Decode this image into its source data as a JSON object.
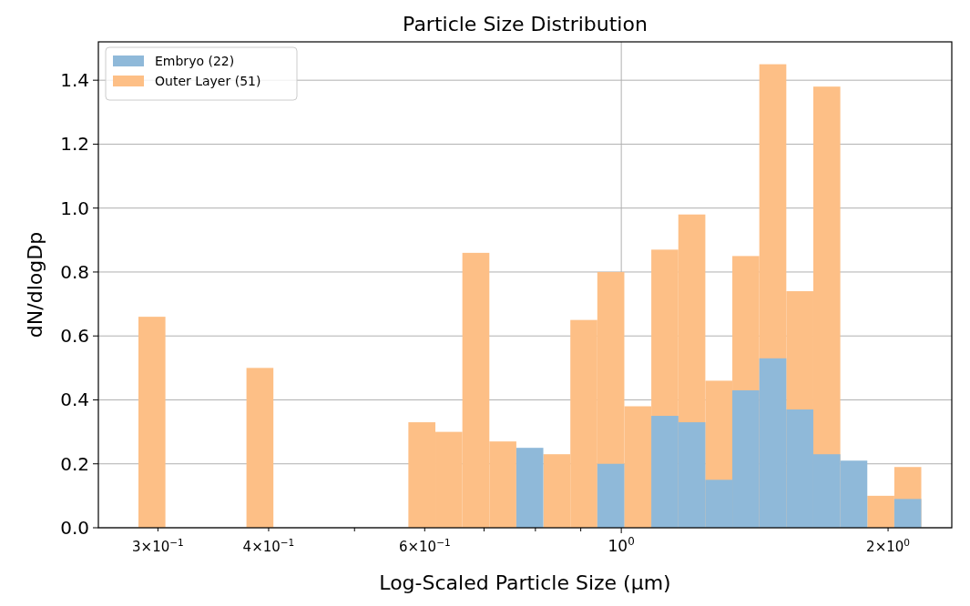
{
  "chart_data": {
    "type": "histogram",
    "title": "Particle Size Distribution",
    "xlabel": "Log-Scaled Particle Size (μm)",
    "ylabel": "dN/dlogDp",
    "bins": [
      0.2852,
      0.3059,
      0.3281,
      0.352,
      0.3776,
      0.405,
      0.4344,
      0.466,
      0.4998,
      0.5361,
      0.5751,
      0.6169,
      0.6617,
      0.7098,
      0.7613,
      0.8166,
      0.876,
      0.9396,
      1.0079,
      1.0811,
      1.1597,
      1.244,
      1.3344,
      1.4313,
      1.5353,
      1.6469,
      1.7665,
      1.8949,
      2.0326,
      2.1802
    ],
    "series": [
      {
        "name": "Embryo (22)",
        "color": "#8fb9d9",
        "values": [
          0,
          0,
          0,
          0,
          0,
          0,
          0,
          0,
          0,
          0,
          0,
          0,
          0,
          0,
          0.25,
          0,
          0,
          0.2,
          0,
          0.35,
          0.33,
          0.15,
          0.43,
          0.53,
          0.37,
          0.23,
          0.21,
          0,
          0.09
        ]
      },
      {
        "name": "Outer Layer (51)",
        "color": "#fdbf86",
        "values": [
          0.66,
          0,
          0,
          0,
          0.5,
          0,
          0,
          0,
          0,
          0,
          0.33,
          0.3,
          0.86,
          0.27,
          null,
          0.23,
          0.65,
          0.8,
          0.38,
          0.87,
          0.98,
          0.46,
          0.85,
          1.45,
          0.74,
          1.38,
          null,
          0.1,
          0.19
        ]
      }
    ],
    "log": "x",
    "xlim": [
      0.257,
      2.36
    ],
    "ylim": [
      0,
      1.52
    ],
    "xticks": [
      {
        "value": 0.3,
        "label": "3×10$^{−1}$"
      },
      {
        "value": 0.4,
        "label": "4×10$^{−1}$"
      },
      {
        "value": 0.5,
        "label": null
      },
      {
        "value": 0.6,
        "label": "6×10$^{−1}$"
      },
      {
        "value": 0.7,
        "label": null
      },
      {
        "value": 0.8,
        "label": null
      },
      {
        "value": 0.9,
        "label": null
      },
      {
        "value": 1,
        "label": "10$^{0}$"
      },
      {
        "value": 2,
        "label": "2×10$^{0}$"
      }
    ],
    "yticks": [
      {
        "value": 0,
        "label": "0.0"
      },
      0.2,
      0.4,
      0.6,
      0.8,
      {
        "value": 1,
        "label": "1.0"
      },
      1.2,
      1.4
    ],
    "grid": true,
    "legend": "top left"
  }
}
